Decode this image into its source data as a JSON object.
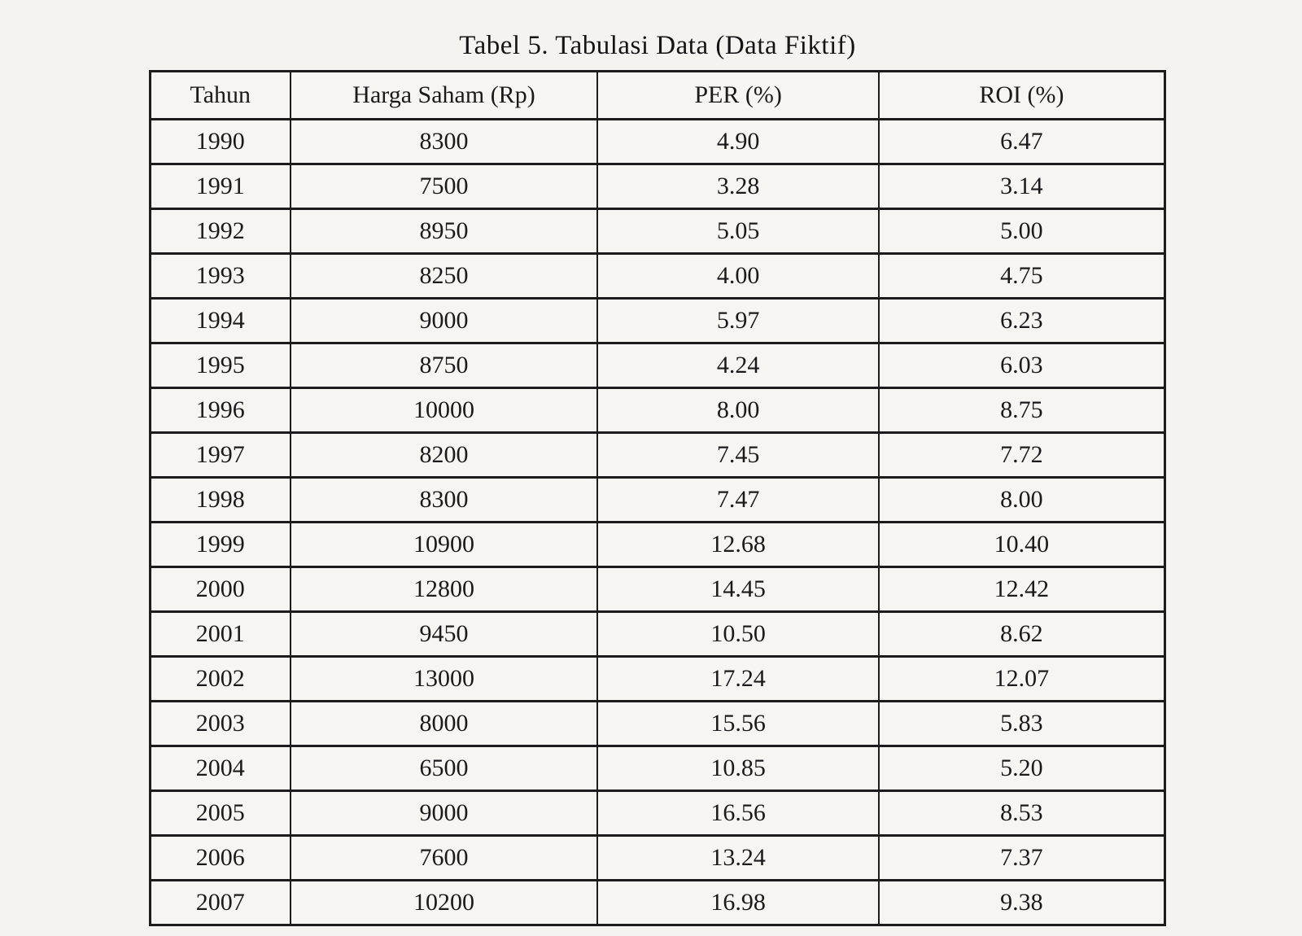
{
  "title": "Tabel 5. Tabulasi Data (Data Fiktif)",
  "table": {
    "columns": [
      "Tahun",
      "Harga Saham (Rp)",
      "PER (%)",
      "ROI (%)"
    ],
    "rows": [
      [
        "1990",
        "8300",
        "4.90",
        "6.47"
      ],
      [
        "1991",
        "7500",
        "3.28",
        "3.14"
      ],
      [
        "1992",
        "8950",
        "5.05",
        "5.00"
      ],
      [
        "1993",
        "8250",
        "4.00",
        "4.75"
      ],
      [
        "1994",
        "9000",
        "5.97",
        "6.23"
      ],
      [
        "1995",
        "8750",
        "4.24",
        "6.03"
      ],
      [
        "1996",
        "10000",
        "8.00",
        "8.75"
      ],
      [
        "1997",
        "8200",
        "7.45",
        "7.72"
      ],
      [
        "1998",
        "8300",
        "7.47",
        "8.00"
      ],
      [
        "1999",
        "10900",
        "12.68",
        "10.40"
      ],
      [
        "2000",
        "12800",
        "14.45",
        "12.42"
      ],
      [
        "2001",
        "9450",
        "10.50",
        "8.62"
      ],
      [
        "2002",
        "13000",
        "17.24",
        "12.07"
      ],
      [
        "2003",
        "8000",
        "15.56",
        "5.83"
      ],
      [
        "2004",
        "6500",
        "10.85",
        "5.20"
      ],
      [
        "2005",
        "9000",
        "16.56",
        "8.53"
      ],
      [
        "2006",
        "7600",
        "13.24",
        "7.37"
      ],
      [
        "2007",
        "10200",
        "16.98",
        "9.38"
      ]
    ]
  },
  "colors": {
    "background": "#f4f3f0",
    "table_background": "#f6f5f2",
    "border": "#1c1c1c",
    "text": "#1a1a1a"
  }
}
